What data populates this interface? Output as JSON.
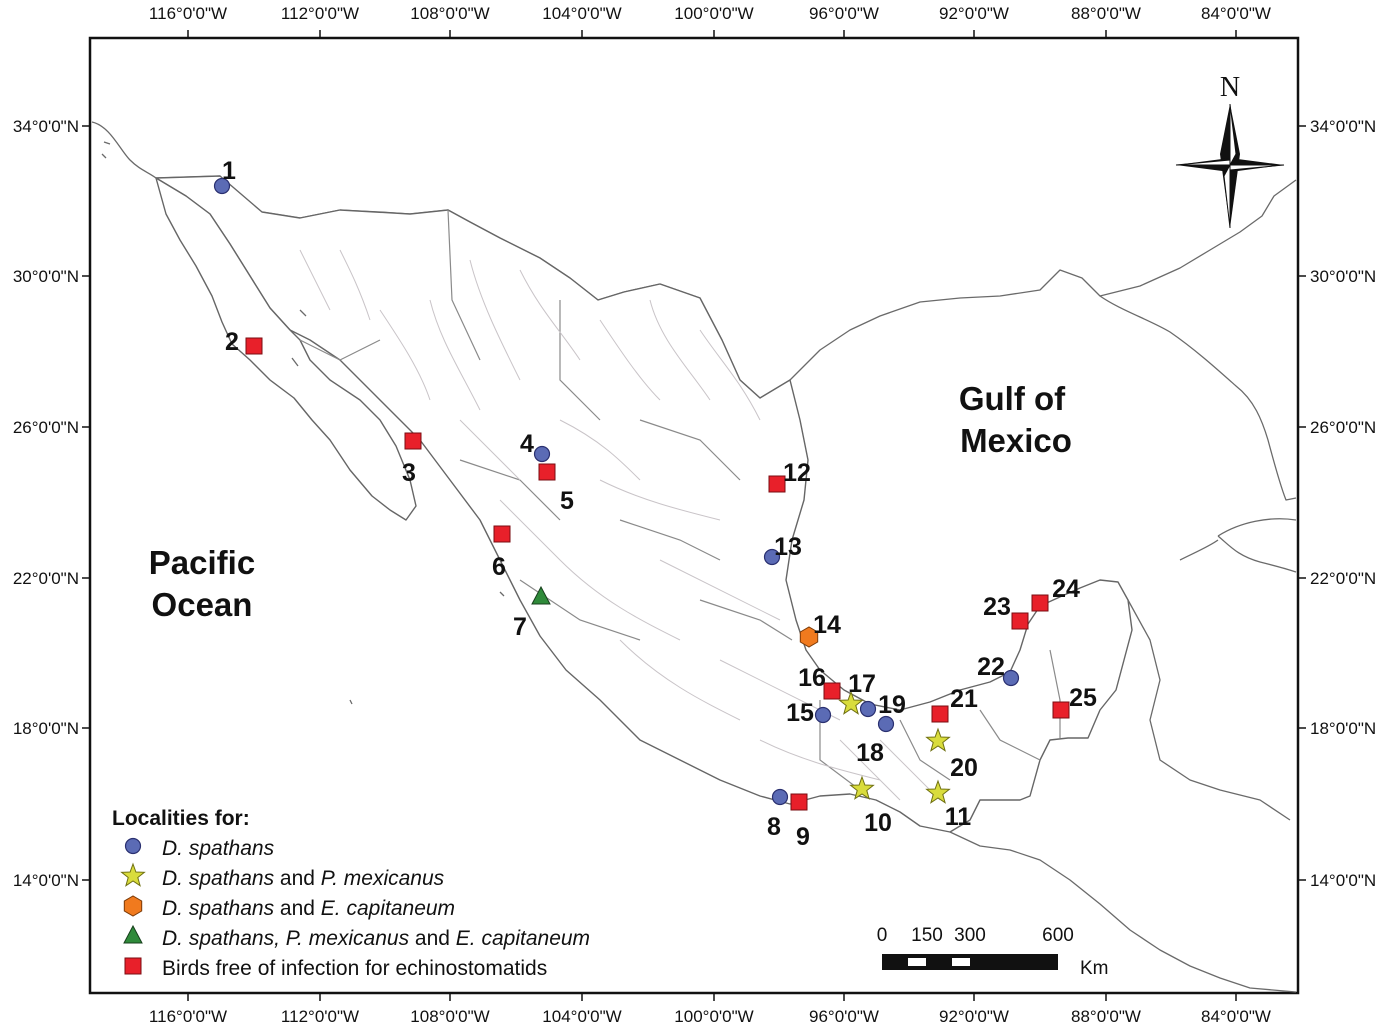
{
  "map": {
    "top_longitude_ticks": [
      "116°0'0\"W",
      "112°0'0\"W",
      "108°0'0\"W",
      "104°0'0\"W",
      "100°0'0\"W",
      "96°0'0\"W",
      "92°0'0\"W",
      "88°0'0\"W",
      "84°0'0\"W"
    ],
    "bottom_longitude_ticks": [
      "116°0'0\"W",
      "112°0'0\"W",
      "108°0'0\"W",
      "104°0'0\"W",
      "100°0'0\"W",
      "96°0'0\"W",
      "92°0'0\"W",
      "88°0'0\"W",
      "84°0'0\"W"
    ],
    "left_latitude_ticks": [
      "34°0'0\"N",
      "30°0'0\"N",
      "26°0'0\"N",
      "22°0'0\"N",
      "18°0'0\"N",
      "14°0'0\"N"
    ],
    "right_latitude_ticks": [
      "34°0'0\"N",
      "30°0'0\"N",
      "26°0'0\"N",
      "22°0'0\"N",
      "18°0'0\"N",
      "14°0'0\"N"
    ],
    "water_bodies": {
      "pacific_line1": "Pacific",
      "pacific_line2": "Ocean",
      "gulf_line1": "Gulf of",
      "gulf_line2": "Mexico"
    },
    "north_arrow": "N",
    "colors": {
      "circle": "#5b6bb5",
      "star": "#d9dc3c",
      "hexagon": "#f07a1e",
      "triangle": "#2f8a3a",
      "square": "#e8202a"
    },
    "sites": [
      {
        "label": "1",
        "symbol": "circle"
      },
      {
        "label": "2",
        "symbol": "square"
      },
      {
        "label": "3",
        "symbol": "square"
      },
      {
        "label": "4",
        "symbol": "circle"
      },
      {
        "label": "5",
        "symbol": "square"
      },
      {
        "label": "6",
        "symbol": "square"
      },
      {
        "label": "7",
        "symbol": "triangle"
      },
      {
        "label": "8",
        "symbol": "circle"
      },
      {
        "label": "9",
        "symbol": "square"
      },
      {
        "label": "10",
        "symbol": "star"
      },
      {
        "label": "11",
        "symbol": "star"
      },
      {
        "label": "12",
        "symbol": "square"
      },
      {
        "label": "13",
        "symbol": "circle"
      },
      {
        "label": "14",
        "symbol": "hexagon"
      },
      {
        "label": "15",
        "symbol": "circle"
      },
      {
        "label": "16",
        "symbol": "square"
      },
      {
        "label": "17",
        "symbol": "star"
      },
      {
        "label": "18",
        "symbol": "circle"
      },
      {
        "label": "19",
        "symbol": "circle"
      },
      {
        "label": "20",
        "symbol": "star"
      },
      {
        "label": "21",
        "symbol": "square"
      },
      {
        "label": "22",
        "symbol": "circle"
      },
      {
        "label": "23",
        "symbol": "square"
      },
      {
        "label": "24",
        "symbol": "square"
      },
      {
        "label": "25",
        "symbol": "square"
      }
    ]
  },
  "legend": {
    "title": "Localities for:",
    "items": [
      {
        "symbol": "circle",
        "parts": [
          {
            "text": "D. spathans",
            "italic": true
          }
        ]
      },
      {
        "symbol": "star",
        "parts": [
          {
            "text": "D. spathans",
            "italic": true
          },
          {
            "text": " and ",
            "italic": false
          },
          {
            "text": "P. mexicanus",
            "italic": true
          }
        ]
      },
      {
        "symbol": "hexagon",
        "parts": [
          {
            "text": "D. spathans",
            "italic": true
          },
          {
            "text": " and ",
            "italic": false
          },
          {
            "text": "E. capitaneum",
            "italic": true
          }
        ]
      },
      {
        "symbol": "triangle",
        "parts": [
          {
            "text": "D. spathans, P. mexicanus",
            "italic": true
          },
          {
            "text": "  and ",
            "italic": false
          },
          {
            "text": "E. capitaneum",
            "italic": true
          }
        ]
      },
      {
        "symbol": "square",
        "parts": [
          {
            "text": "Birds free of infection for echinostomatids",
            "italic": false
          }
        ]
      }
    ]
  },
  "scale_bar": {
    "labels": [
      "0",
      "150",
      "300",
      "600"
    ],
    "unit": "Km"
  }
}
